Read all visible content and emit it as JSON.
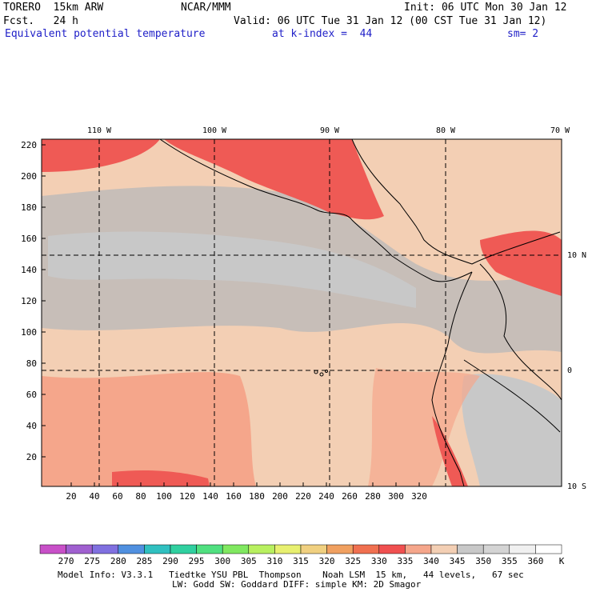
{
  "header": {
    "model": "TORERO  15km ARW",
    "org": "NCAR/MMM",
    "init": "Init: 06 UTC Mon 30 Jan 12",
    "fcst": "Fcst.   24 h",
    "valid": "Valid: 06 UTC Tue 31 Jan 12 (00 CST Tue 31 Jan 12)",
    "field": "Equivalent potential temperature",
    "level": "at k-index =  44",
    "smooth": "sm= 2"
  },
  "map": {
    "lon_labels": [
      "110 W",
      "100 W",
      "90 W",
      "80 W",
      "70 W"
    ],
    "lat_labels": [
      "10 N",
      "0",
      "10 S"
    ],
    "y_ticks": [
      "220",
      "200",
      "180",
      "160",
      "140",
      "120",
      "100",
      "80",
      "60",
      "40",
      "20"
    ],
    "x_ticks": [
      "20",
      "40",
      "60",
      "80",
      "100",
      "120",
      "140",
      "160",
      "180",
      "200",
      "220",
      "240",
      "260",
      "280",
      "300",
      "320"
    ],
    "colors": {
      "cool_band": "#c8c8c8",
      "neutral": "#c7beb8",
      "warm": "#f3cfb4",
      "warmer": "#f5a68b",
      "hot": "#ef5a55"
    }
  },
  "colorbar": {
    "labels": [
      "270",
      "275",
      "280",
      "285",
      "290",
      "295",
      "300",
      "305",
      "310",
      "315",
      "320",
      "325",
      "330",
      "335",
      "340",
      "345",
      "350",
      "355",
      "360",
      "K"
    ],
    "colors": [
      "#c850c8",
      "#a060d0",
      "#8070e0",
      "#5090e0",
      "#30c0c0",
      "#30d0a0",
      "#50e080",
      "#80e860",
      "#b8f060",
      "#e8f070",
      "#f0d080",
      "#f0a060",
      "#f07050",
      "#f05050",
      "#f5a68b",
      "#f3cfb4",
      "#c8c8c8",
      "#d4d4d4",
      "#f0f0f0",
      "#ffffff"
    ]
  },
  "footer": {
    "line1": "Model Info: V3.3.1   Tiedtke YSU PBL  Thompson    Noah LSM  15 km,   44 levels,   67 sec",
    "line2": "LW: Godd SW: Goddard DIFF: simple KM: 2D Smagor"
  }
}
